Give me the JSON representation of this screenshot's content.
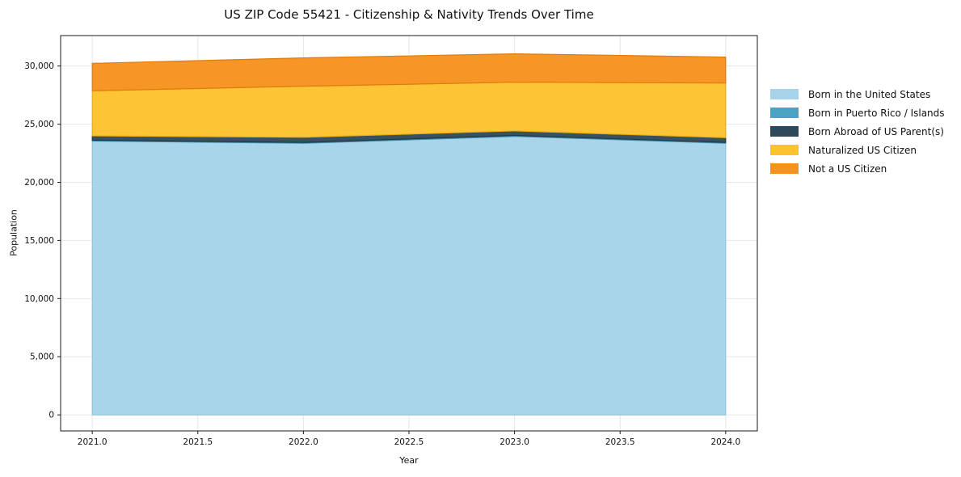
{
  "chart_data": {
    "type": "area",
    "stacked": true,
    "title": "US ZIP Code 55421 - Citizenship & Nativity Trends Over Time",
    "xlabel": "Year",
    "ylabel": "Population",
    "x": [
      2021,
      2022,
      2023,
      2024
    ],
    "series": [
      {
        "name": "Born in the United States",
        "color": "#a6d3ea",
        "edge": "#8fc3de",
        "values": [
          23550,
          23360,
          23950,
          23360
        ]
      },
      {
        "name": "Born in Puerto Rico / Islands",
        "color": "#4aa3c2",
        "edge": "#3d8dab",
        "values": [
          70,
          70,
          80,
          70
        ]
      },
      {
        "name": "Born Abroad of US Parent(s)",
        "color": "#2e4a5a",
        "edge": "#223844",
        "values": [
          380,
          440,
          390,
          410
        ]
      },
      {
        "name": "Naturalized US Citizen",
        "color": "#fdc22d",
        "edge": "#edae0e",
        "values": [
          3870,
          4400,
          4190,
          4700
        ]
      },
      {
        "name": "Not a US Citizen",
        "color": "#f6921e",
        "edge": "#e07b0d",
        "values": [
          2360,
          2430,
          2440,
          2230
        ]
      }
    ],
    "totals": [
      30230,
      30700,
      31050,
      30770
    ],
    "xlim": [
      2020.85,
      2024.15
    ],
    "ylim": [
      -1380,
      32620
    ],
    "xticks": {
      "values": [
        2021.0,
        2021.5,
        2022.0,
        2022.5,
        2023.0,
        2023.5,
        2024.0
      ],
      "labels": [
        "2021.0",
        "2021.5",
        "2022.0",
        "2022.5",
        "2023.0",
        "2023.5",
        "2024.0"
      ]
    },
    "yticks": {
      "values": [
        0,
        5000,
        10000,
        15000,
        20000,
        25000,
        30000
      ],
      "labels": [
        "0",
        "5,000",
        "10,000",
        "15,000",
        "20,000",
        "25,000",
        "30,000"
      ]
    },
    "grid": true,
    "legend_position": "right-outside"
  },
  "style": {
    "background": "#ffffff",
    "grid_color": "#e6e6e6",
    "spine_color": "#1a1a1a",
    "tick_color": "#1a1a1a",
    "text_color": "#111111",
    "fill_opacity": 0.96
  }
}
